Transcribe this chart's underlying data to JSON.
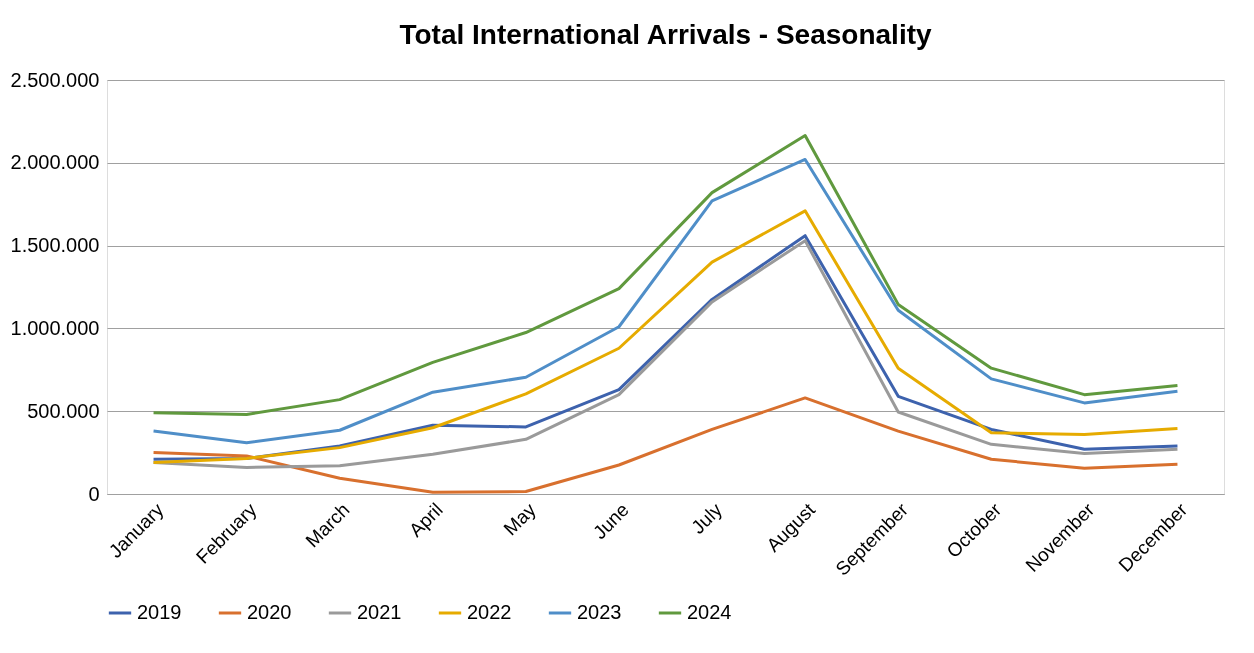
{
  "chart_data": {
    "type": "line",
    "title": "Total International Arrivals - Seasonality",
    "categories": [
      "January",
      "February",
      "March",
      "April",
      "May",
      "June",
      "July",
      "August",
      "September",
      "October",
      "November",
      "December"
    ],
    "series": [
      {
        "name": "2019",
        "color": "#3d62ad",
        "values": [
          210000,
          215000,
          290000,
          415000,
          405000,
          630000,
          1175000,
          1560000,
          590000,
          390000,
          270000,
          290000
        ]
      },
      {
        "name": "2020",
        "color": "#d8702e",
        "values": [
          250000,
          230000,
          95000,
          10000,
          15000,
          175000,
          390000,
          580000,
          380000,
          210000,
          155000,
          180000
        ]
      },
      {
        "name": "2021",
        "color": "#9a9a9a",
        "values": [
          190000,
          160000,
          170000,
          240000,
          330000,
          600000,
          1160000,
          1530000,
          495000,
          300000,
          245000,
          270000
        ]
      },
      {
        "name": "2022",
        "color": "#e6ab00",
        "values": [
          190000,
          215000,
          280000,
          400000,
          605000,
          880000,
          1400000,
          1710000,
          760000,
          370000,
          360000,
          395000
        ]
      },
      {
        "name": "2023",
        "color": "#4f8ec8",
        "values": [
          380000,
          310000,
          385000,
          615000,
          705000,
          1010000,
          1770000,
          2020000,
          1110000,
          695000,
          550000,
          620000
        ]
      },
      {
        "name": "2024",
        "color": "#60993e",
        "values": [
          490000,
          480000,
          570000,
          795000,
          975000,
          1240000,
          1820000,
          2165000,
          1145000,
          760000,
          600000,
          655000
        ]
      }
    ],
    "ylim": [
      0,
      2500000
    ],
    "yticks": [
      {
        "value": 0,
        "label": "0"
      },
      {
        "value": 500000,
        "label": "500.000"
      },
      {
        "value": 1000000,
        "label": "1.000.000"
      },
      {
        "value": 1500000,
        "label": "1.500.000"
      },
      {
        "value": 2000000,
        "label": "2.000.000"
      },
      {
        "value": 2500000,
        "label": "2.500.000"
      }
    ],
    "grid": "y",
    "legend": "bottom",
    "marker": "none",
    "line_style": "solid"
  }
}
